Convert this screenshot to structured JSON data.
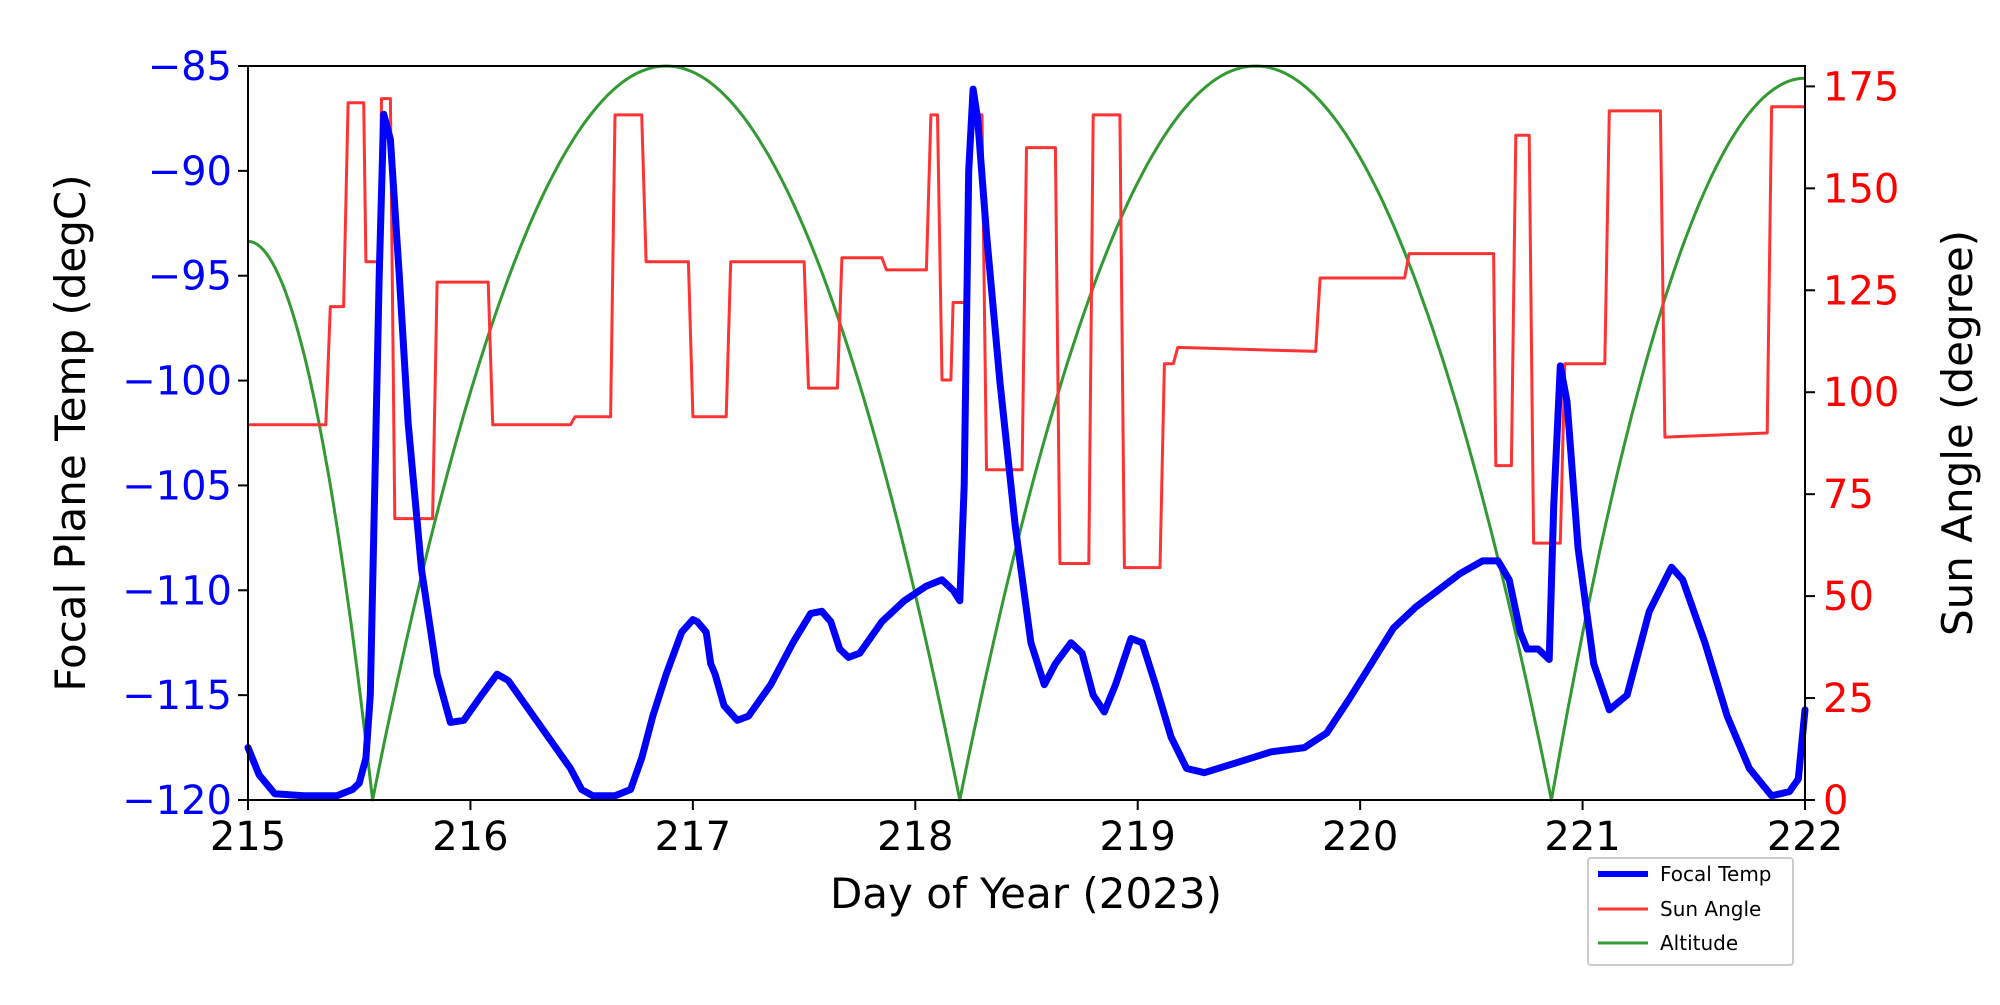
{
  "chart_data": {
    "type": "line",
    "xlabel": "Day of Year (2023)",
    "ylabel_left": "Focal Plane Temp (degC)",
    "ylabel_right": "Sun Angle (degree)",
    "xlim": [
      215,
      222
    ],
    "ylim_left": [
      -120,
      -85
    ],
    "ylim_right": [
      0,
      180
    ],
    "x_ticks": [
      215,
      216,
      217,
      218,
      219,
      220,
      221,
      222
    ],
    "y_left_ticks": [
      -85,
      -90,
      -95,
      -100,
      -105,
      -110,
      -115,
      -120
    ],
    "y_right_ticks": [
      175,
      150,
      125,
      100,
      75,
      50,
      25,
      0
    ],
    "grid": false,
    "legend_position": "lower-right-outside",
    "legend": [
      "Focal Temp",
      "Sun Angle",
      "Altitude"
    ],
    "colors": {
      "focal": "#0000ff",
      "sun": "#ff3333",
      "altitude": "#339933"
    },
    "series": [
      {
        "name": "Focal Temp",
        "axis": "left",
        "points": [
          [
            215.0,
            -117.5
          ],
          [
            215.05,
            -118.8
          ],
          [
            215.12,
            -119.7
          ],
          [
            215.25,
            -119.8
          ],
          [
            215.4,
            -119.8
          ],
          [
            215.47,
            -119.5
          ],
          [
            215.5,
            -119.2
          ],
          [
            215.53,
            -118.0
          ],
          [
            215.55,
            -115.0
          ],
          [
            215.57,
            -105.0
          ],
          [
            215.59,
            -95.0
          ],
          [
            215.61,
            -87.3
          ],
          [
            215.64,
            -88.5
          ],
          [
            215.68,
            -95.0
          ],
          [
            215.72,
            -102.0
          ],
          [
            215.78,
            -109.0
          ],
          [
            215.85,
            -114.0
          ],
          [
            215.91,
            -116.3
          ],
          [
            215.97,
            -116.2
          ],
          [
            216.05,
            -115.0
          ],
          [
            216.12,
            -114.0
          ],
          [
            216.17,
            -114.3
          ],
          [
            216.25,
            -115.5
          ],
          [
            216.35,
            -117.0
          ],
          [
            216.45,
            -118.5
          ],
          [
            216.5,
            -119.5
          ],
          [
            216.55,
            -119.8
          ],
          [
            216.65,
            -119.8
          ],
          [
            216.72,
            -119.5
          ],
          [
            216.77,
            -118.0
          ],
          [
            216.82,
            -116.0
          ],
          [
            216.88,
            -114.0
          ],
          [
            216.95,
            -112.0
          ],
          [
            217.0,
            -111.4
          ],
          [
            217.02,
            -111.5
          ],
          [
            217.06,
            -112.0
          ],
          [
            217.08,
            -113.5
          ],
          [
            217.1,
            -114.0
          ],
          [
            217.14,
            -115.5
          ],
          [
            217.2,
            -116.2
          ],
          [
            217.25,
            -116.0
          ],
          [
            217.35,
            -114.5
          ],
          [
            217.45,
            -112.5
          ],
          [
            217.53,
            -111.1
          ],
          [
            217.58,
            -111.0
          ],
          [
            217.62,
            -111.5
          ],
          [
            217.66,
            -112.8
          ],
          [
            217.7,
            -113.2
          ],
          [
            217.75,
            -113.0
          ],
          [
            217.85,
            -111.5
          ],
          [
            217.95,
            -110.5
          ],
          [
            218.05,
            -109.8
          ],
          [
            218.12,
            -109.5
          ],
          [
            218.17,
            -110.0
          ],
          [
            218.2,
            -110.5
          ],
          [
            218.22,
            -105.0
          ],
          [
            218.24,
            -90.0
          ],
          [
            218.26,
            -86.1
          ],
          [
            218.28,
            -87.5
          ],
          [
            218.32,
            -93.0
          ],
          [
            218.38,
            -100.0
          ],
          [
            218.45,
            -107.0
          ],
          [
            218.52,
            -112.5
          ],
          [
            218.58,
            -114.5
          ],
          [
            218.63,
            -113.5
          ],
          [
            218.7,
            -112.5
          ],
          [
            218.75,
            -113.0
          ],
          [
            218.8,
            -115.0
          ],
          [
            218.85,
            -115.8
          ],
          [
            218.9,
            -114.5
          ],
          [
            218.97,
            -112.3
          ],
          [
            219.02,
            -112.5
          ],
          [
            219.08,
            -114.5
          ],
          [
            219.15,
            -117.0
          ],
          [
            219.22,
            -118.5
          ],
          [
            219.3,
            -118.7
          ],
          [
            219.45,
            -118.2
          ],
          [
            219.6,
            -117.7
          ],
          [
            219.75,
            -117.5
          ],
          [
            219.85,
            -116.8
          ],
          [
            219.95,
            -115.2
          ],
          [
            220.05,
            -113.5
          ],
          [
            220.15,
            -111.8
          ],
          [
            220.25,
            -110.8
          ],
          [
            220.35,
            -110.0
          ],
          [
            220.45,
            -109.2
          ],
          [
            220.55,
            -108.6
          ],
          [
            220.62,
            -108.6
          ],
          [
            220.67,
            -109.5
          ],
          [
            220.72,
            -112.0
          ],
          [
            220.75,
            -112.8
          ],
          [
            220.8,
            -112.8
          ],
          [
            220.85,
            -113.3
          ],
          [
            220.87,
            -106.0
          ],
          [
            220.9,
            -99.3
          ],
          [
            220.93,
            -101.0
          ],
          [
            220.98,
            -108.0
          ],
          [
            221.05,
            -113.5
          ],
          [
            221.12,
            -115.7
          ],
          [
            221.2,
            -115.0
          ],
          [
            221.3,
            -111.0
          ],
          [
            221.4,
            -108.9
          ],
          [
            221.45,
            -109.5
          ],
          [
            221.55,
            -112.5
          ],
          [
            221.65,
            -116.0
          ],
          [
            221.75,
            -118.5
          ],
          [
            221.85,
            -119.8
          ],
          [
            221.93,
            -119.6
          ],
          [
            221.97,
            -119.0
          ],
          [
            222.0,
            -115.7
          ]
        ]
      },
      {
        "name": "Sun Angle",
        "axis": "right",
        "points": [
          [
            215.0,
            92
          ],
          [
            215.35,
            92
          ],
          [
            215.37,
            121
          ],
          [
            215.43,
            121
          ],
          [
            215.45,
            171
          ],
          [
            215.52,
            171
          ],
          [
            215.53,
            132
          ],
          [
            215.59,
            132
          ],
          [
            215.6,
            172
          ],
          [
            215.64,
            172
          ],
          [
            215.66,
            69
          ],
          [
            215.83,
            69
          ],
          [
            215.85,
            127
          ],
          [
            216.08,
            127
          ],
          [
            216.1,
            92
          ],
          [
            216.45,
            92
          ],
          [
            216.47,
            94
          ],
          [
            216.63,
            94
          ],
          [
            216.65,
            168
          ],
          [
            216.77,
            168
          ],
          [
            216.79,
            132
          ],
          [
            216.98,
            132
          ],
          [
            217.0,
            94
          ],
          [
            217.15,
            94
          ],
          [
            217.17,
            132
          ],
          [
            217.5,
            132
          ],
          [
            217.52,
            101
          ],
          [
            217.65,
            101
          ],
          [
            217.67,
            133
          ],
          [
            217.85,
            133
          ],
          [
            217.87,
            130
          ],
          [
            218.05,
            130
          ],
          [
            218.07,
            168
          ],
          [
            218.1,
            168
          ],
          [
            218.12,
            103
          ],
          [
            218.16,
            103
          ],
          [
            218.17,
            122
          ],
          [
            218.23,
            122
          ],
          [
            218.25,
            168
          ],
          [
            218.3,
            168
          ],
          [
            218.32,
            81
          ],
          [
            218.48,
            81
          ],
          [
            218.5,
            160
          ],
          [
            218.63,
            160
          ],
          [
            218.65,
            58
          ],
          [
            218.78,
            58
          ],
          [
            218.8,
            168
          ],
          [
            218.92,
            168
          ],
          [
            218.94,
            57
          ],
          [
            219.1,
            57
          ],
          [
            219.12,
            107
          ],
          [
            219.16,
            107
          ],
          [
            219.18,
            111
          ],
          [
            219.8,
            110
          ],
          [
            219.82,
            128
          ],
          [
            220.2,
            128
          ],
          [
            220.22,
            134
          ],
          [
            220.6,
            134
          ],
          [
            220.61,
            82
          ],
          [
            220.68,
            82
          ],
          [
            220.7,
            163
          ],
          [
            220.76,
            163
          ],
          [
            220.78,
            63
          ],
          [
            220.9,
            63
          ],
          [
            220.92,
            107
          ],
          [
            221.1,
            107
          ],
          [
            221.12,
            169
          ],
          [
            221.35,
            169
          ],
          [
            221.37,
            89
          ],
          [
            221.83,
            90
          ],
          [
            221.85,
            170
          ],
          [
            222.0,
            170
          ]
        ]
      },
      {
        "name": "Altitude",
        "axis": "right",
        "zero_days": [
          215.56,
          218.2,
          220.86
        ],
        "peaks": [
          [
            216.88,
            180
          ],
          [
            219.53,
            180
          ]
        ],
        "start": [
          215.0,
          137
        ],
        "end": [
          222.0,
          177
        ]
      }
    ]
  }
}
